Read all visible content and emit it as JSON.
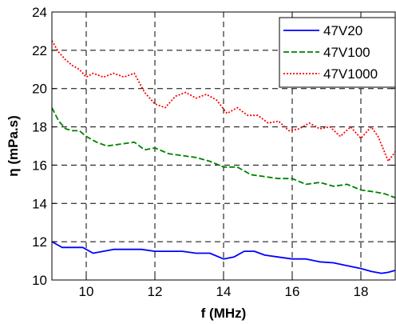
{
  "chart_data": {
    "type": "line",
    "title": "",
    "xlabel": "f (MHz)",
    "ylabel": "η (mPa.s)",
    "xlim": [
      9,
      19
    ],
    "ylim": [
      10,
      24
    ],
    "xticks": [
      10,
      12,
      14,
      16,
      18
    ],
    "yticks": [
      10,
      12,
      14,
      16,
      18,
      20,
      22,
      24
    ],
    "grid": true,
    "legend_position": "top-right",
    "series": [
      {
        "name": "47V20",
        "color": "#0000ff",
        "style": "solid",
        "x": [
          9.0,
          9.3,
          9.6,
          9.9,
          10.2,
          10.5,
          10.8,
          11.2,
          11.6,
          12.0,
          12.4,
          12.8,
          13.2,
          13.6,
          14.0,
          14.3,
          14.6,
          14.9,
          15.2,
          15.6,
          16.0,
          16.4,
          16.8,
          17.2,
          17.6,
          18.0,
          18.3,
          18.6,
          18.8,
          19.0
        ],
        "y": [
          12.0,
          11.7,
          11.7,
          11.7,
          11.4,
          11.5,
          11.6,
          11.6,
          11.6,
          11.5,
          11.5,
          11.5,
          11.4,
          11.4,
          11.1,
          11.2,
          11.5,
          11.5,
          11.3,
          11.2,
          11.1,
          11.1,
          10.95,
          10.9,
          10.75,
          10.6,
          10.45,
          10.35,
          10.4,
          10.5
        ]
      },
      {
        "name": "47V100",
        "color": "#008000",
        "style": "dashed",
        "x": [
          9.0,
          9.2,
          9.4,
          9.6,
          9.8,
          10.0,
          10.3,
          10.6,
          11.0,
          11.4,
          11.7,
          12.0,
          12.4,
          12.8,
          13.2,
          13.6,
          14.0,
          14.4,
          14.8,
          15.2,
          15.6,
          16.0,
          16.4,
          16.8,
          17.2,
          17.6,
          18.0,
          18.4,
          18.7,
          19.0
        ],
        "y": [
          19.0,
          18.3,
          17.9,
          17.8,
          17.8,
          17.5,
          17.2,
          17.0,
          17.1,
          17.2,
          16.8,
          16.9,
          16.6,
          16.5,
          16.4,
          16.2,
          15.9,
          15.9,
          15.5,
          15.4,
          15.3,
          15.3,
          15.0,
          15.1,
          14.9,
          15.0,
          14.7,
          14.6,
          14.5,
          14.3
        ]
      },
      {
        "name": "47V1000",
        "color": "#ff0000",
        "style": "dotted",
        "x": [
          9.0,
          9.2,
          9.4,
          9.6,
          9.8,
          10.0,
          10.2,
          10.5,
          10.8,
          11.1,
          11.4,
          11.7,
          12.0,
          12.3,
          12.6,
          12.9,
          13.2,
          13.5,
          13.8,
          14.1,
          14.4,
          14.7,
          15.0,
          15.3,
          15.6,
          15.9,
          16.2,
          16.5,
          16.8,
          17.1,
          17.4,
          17.7,
          18.0,
          18.3,
          18.5,
          18.8,
          19.0
        ],
        "y": [
          22.5,
          21.9,
          21.5,
          21.2,
          21.0,
          20.6,
          20.8,
          20.6,
          20.8,
          20.6,
          20.8,
          19.8,
          19.2,
          19.0,
          19.6,
          19.8,
          19.5,
          19.7,
          19.4,
          18.7,
          19.0,
          18.6,
          18.6,
          18.2,
          18.3,
          17.8,
          17.9,
          18.2,
          17.9,
          18.0,
          17.5,
          18.0,
          17.4,
          18.0,
          17.5,
          16.2,
          16.7
        ]
      }
    ]
  }
}
